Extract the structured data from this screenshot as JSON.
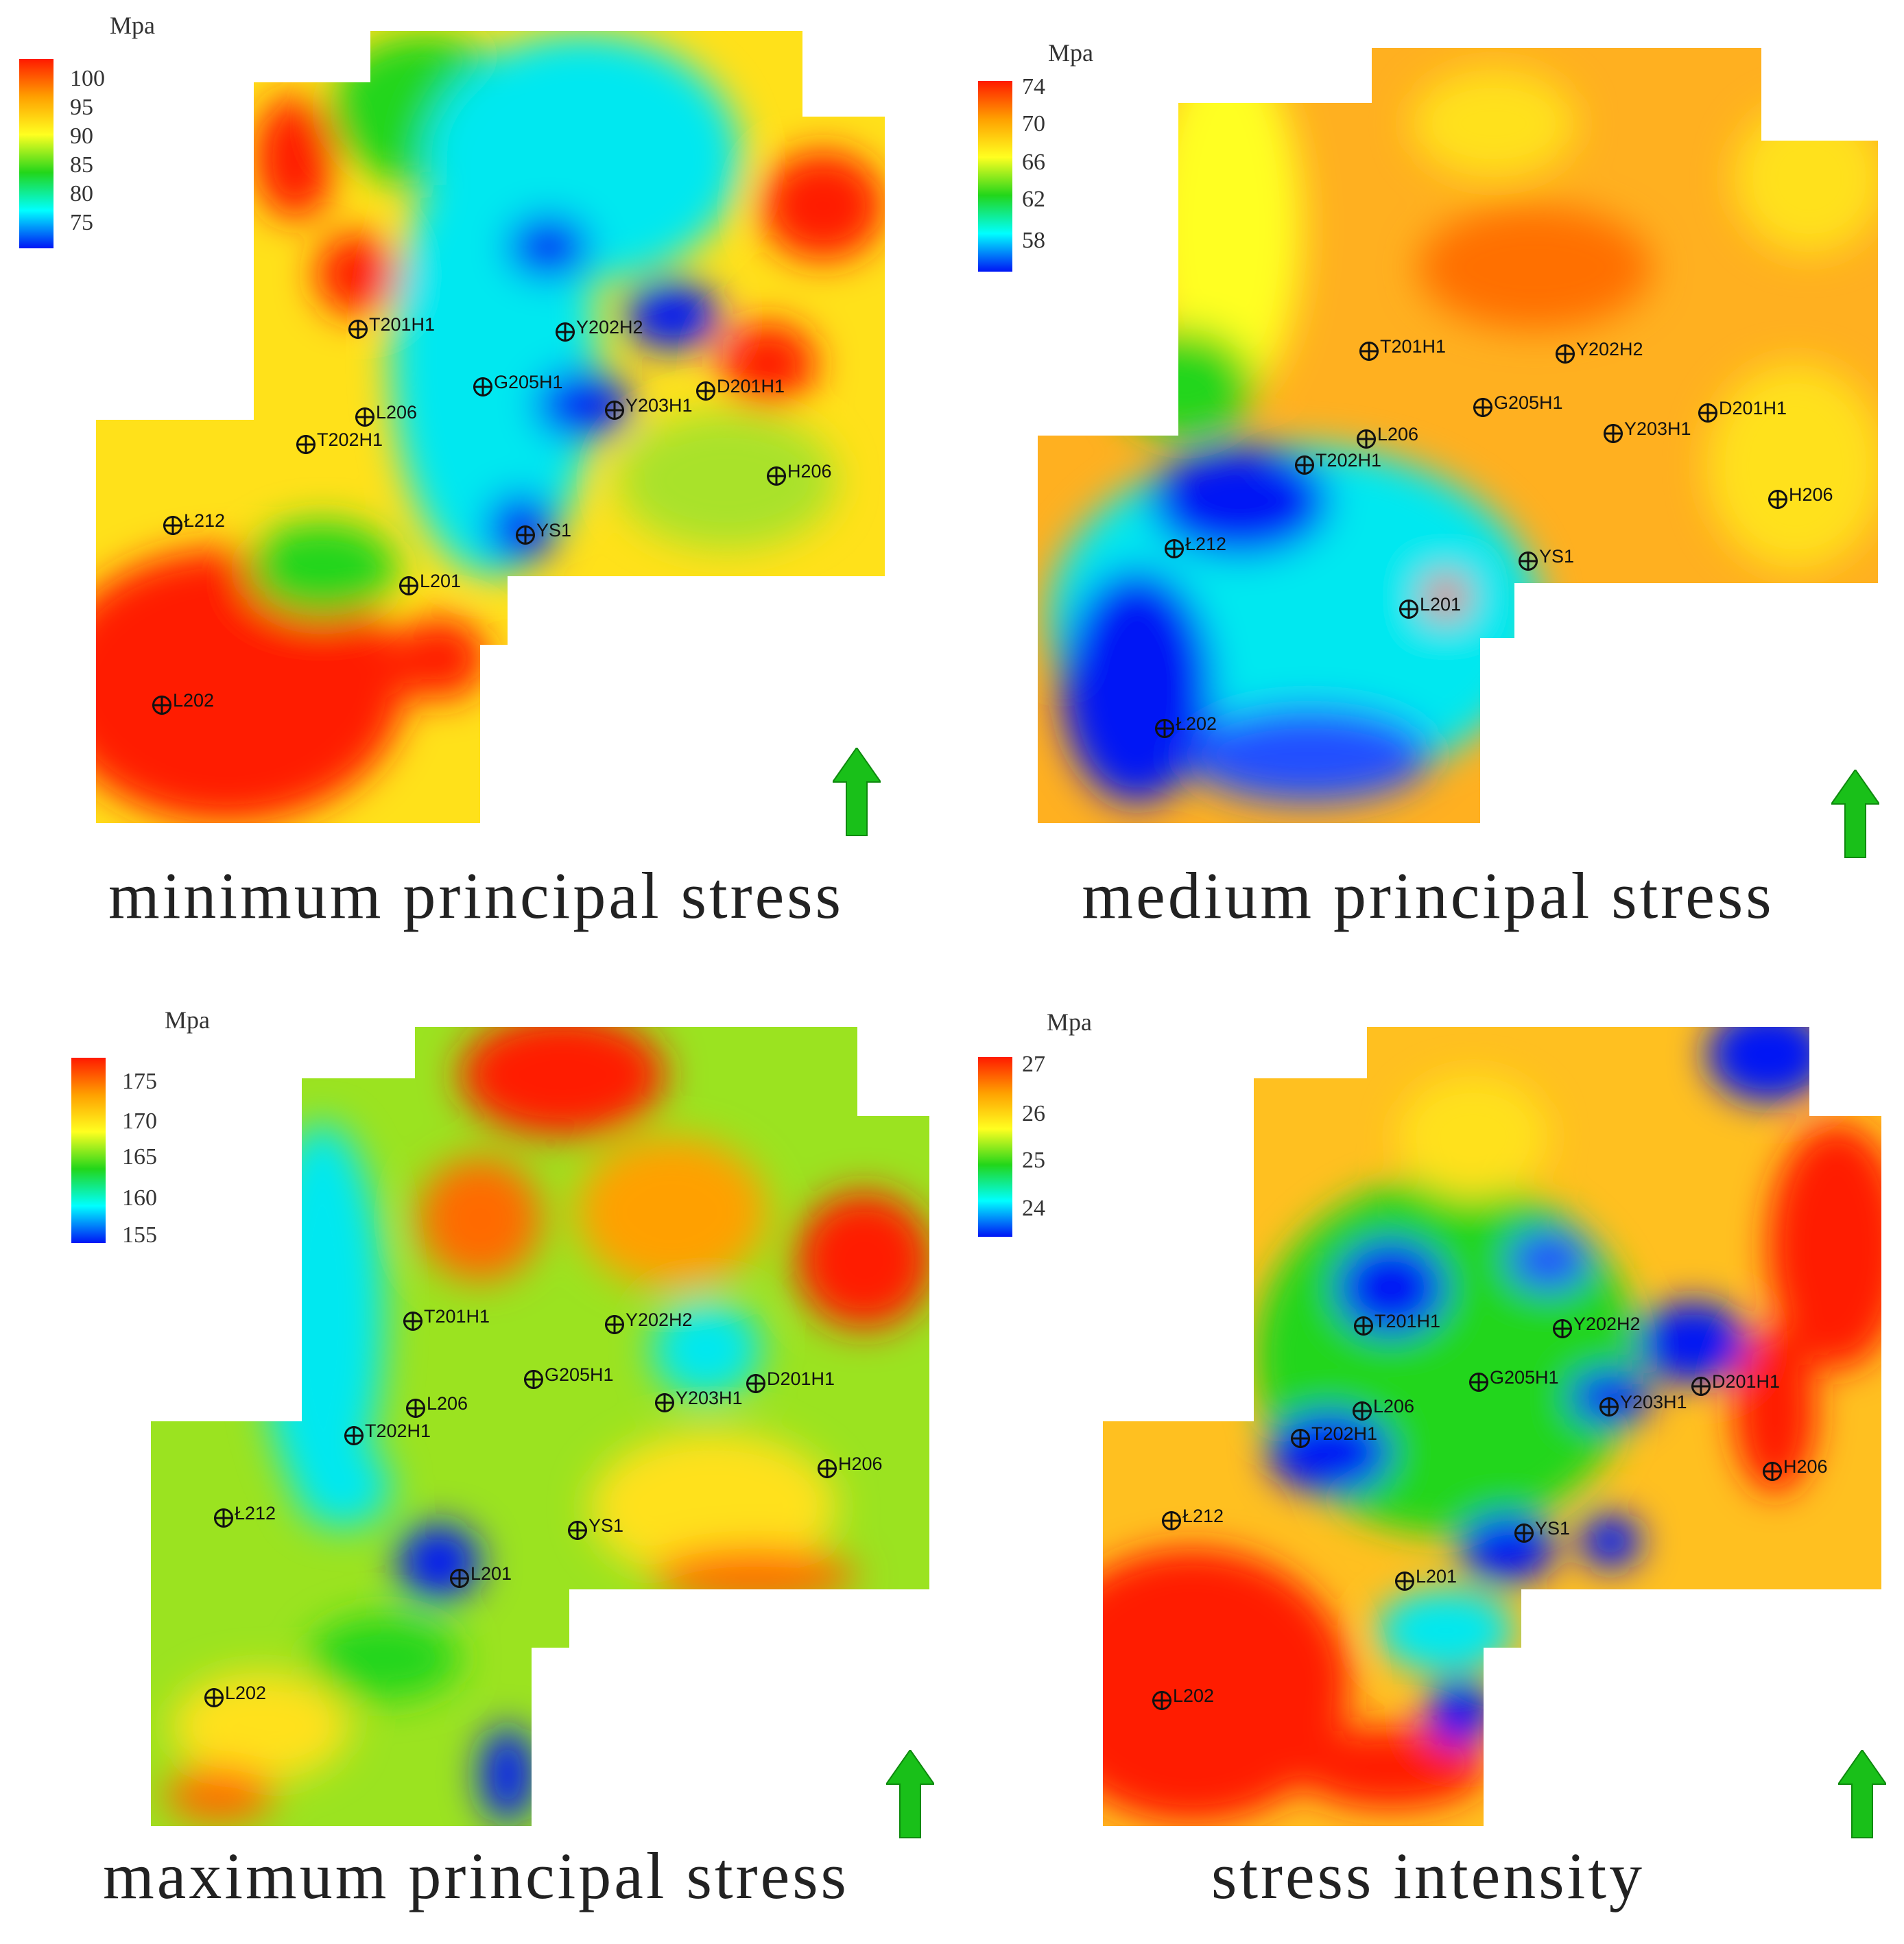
{
  "unit": "Mpa",
  "colors": {
    "red": "#ff1a00",
    "orange": "#ffa000",
    "yellow": "#ffff20",
    "green": "#22d61a",
    "cyan": "#00ffff",
    "blue": "#0015f5",
    "north_arrow": "#19c019"
  },
  "icons": {
    "well": "well-symbol-icon",
    "north": "north-arrow-icon"
  },
  "panels": [
    {
      "caption": "minimum principal stress",
      "legend_ticks": [
        "100",
        "95",
        "90",
        "85",
        "80",
        "75"
      ],
      "wells": [
        "T201H1",
        "Y202H2",
        "G205H1",
        "Y203H1",
        "D201H1",
        "L206",
        "T202H1",
        "H206",
        "Ł212",
        "YS1",
        "L201",
        "L202"
      ]
    },
    {
      "caption": "medium principal stress",
      "legend_ticks": [
        "74",
        "70",
        "66",
        "62",
        "58"
      ],
      "wells": [
        "T201H1",
        "Y202H2",
        "G205H1",
        "Y203H1",
        "D201H1",
        "L206",
        "T202H1",
        "H206",
        "Ł212",
        "YS1",
        "L201",
        "Ł202"
      ]
    },
    {
      "caption": "maximum principal stress",
      "legend_ticks": [
        "175",
        "170",
        "165",
        "160",
        "155"
      ],
      "wells": [
        "T201H1",
        "Y202H2",
        "G205H1",
        "Y203H1",
        "D201H1",
        "L206",
        "T202H1",
        "H206",
        "Ł212",
        "YS1",
        "L201",
        "L202"
      ]
    },
    {
      "caption": "stress intensity",
      "legend_ticks": [
        "27",
        "26",
        "25",
        "24"
      ],
      "wells": [
        "T201H1",
        "Y202H2",
        "G205H1",
        "Y203H1",
        "D201H1",
        "L206",
        "T202H1",
        "H206",
        "Ł212",
        "YS1",
        "L201",
        "L202"
      ]
    }
  ]
}
